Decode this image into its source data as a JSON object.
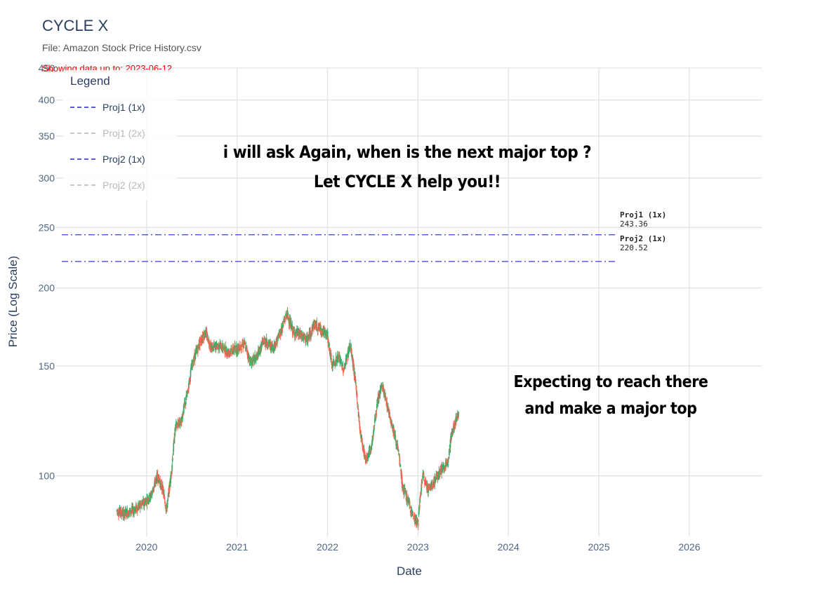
{
  "header": {
    "title": "CYCLE X",
    "file_label": "File: Amazon Stock Price History.csv",
    "showing": "Showing data up to: 2023-06-12"
  },
  "legend": {
    "title": "Legend",
    "items": [
      {
        "label": "Proj1 (1x)",
        "color": "#5b5bd6",
        "active": true
      },
      {
        "label": "Proj1 (2x)",
        "color": "#c8c8c8",
        "active": false
      },
      {
        "label": "Proj2 (1x)",
        "color": "#5b5bd6",
        "active": true
      },
      {
        "label": "Proj2 (2x)",
        "color": "#c8c8c8",
        "active": false
      }
    ]
  },
  "overlay_text": {
    "question_line1": "i will ask Again, when is the next major top ?",
    "question_line2": "Let CYCLE X help you!!",
    "expect_line1": "Expecting to reach there",
    "expect_line2": "and make a major top"
  },
  "annotations": [
    {
      "name": "Proj1 (1x)",
      "value": "243.36"
    },
    {
      "name": "Proj2 (1x)",
      "value": "220.52"
    }
  ],
  "chart_data": {
    "type": "candlestick",
    "title": "CYCLE X",
    "xlabel": "Date",
    "ylabel": "Price (Log Scale)",
    "yscale": "log",
    "ylim": [
      80,
      450
    ],
    "xlim": [
      2019.0,
      2026.8
    ],
    "x_ticks": [
      "2020",
      "2021",
      "2022",
      "2023",
      "2024",
      "2025",
      "2026"
    ],
    "y_ticks": [
      100,
      150,
      200,
      250,
      300,
      350,
      400,
      450
    ],
    "up_color": "#3dab6b",
    "down_color": "#f2674d",
    "projection_lines": [
      {
        "name": "Proj1 (1x)",
        "value": 243.36,
        "color": "#5b5bd6"
      },
      {
        "name": "Proj2 (1x)",
        "value": 220.52,
        "color": "#5b5bd6"
      }
    ],
    "price_path": [
      [
        2019.67,
        88
      ],
      [
        2019.75,
        87
      ],
      [
        2019.85,
        88
      ],
      [
        2019.95,
        90
      ],
      [
        2020.05,
        93
      ],
      [
        2020.12,
        100
      ],
      [
        2020.18,
        95
      ],
      [
        2020.22,
        88
      ],
      [
        2020.27,
        100
      ],
      [
        2020.32,
        120
      ],
      [
        2020.38,
        122
      ],
      [
        2020.45,
        135
      ],
      [
        2020.5,
        150
      ],
      [
        2020.55,
        158
      ],
      [
        2020.6,
        165
      ],
      [
        2020.65,
        170
      ],
      [
        2020.72,
        160
      ],
      [
        2020.8,
        162
      ],
      [
        2020.9,
        158
      ],
      [
        2021.0,
        160
      ],
      [
        2021.08,
        163
      ],
      [
        2021.15,
        152
      ],
      [
        2021.22,
        155
      ],
      [
        2021.3,
        165
      ],
      [
        2021.4,
        160
      ],
      [
        2021.48,
        170
      ],
      [
        2021.55,
        182
      ],
      [
        2021.62,
        170
      ],
      [
        2021.7,
        168
      ],
      [
        2021.78,
        165
      ],
      [
        2021.85,
        175
      ],
      [
        2021.92,
        172
      ],
      [
        2022.0,
        168
      ],
      [
        2022.05,
        150
      ],
      [
        2022.12,
        155
      ],
      [
        2022.18,
        148
      ],
      [
        2022.25,
        162
      ],
      [
        2022.3,
        145
      ],
      [
        2022.36,
        118
      ],
      [
        2022.42,
        106
      ],
      [
        2022.48,
        110
      ],
      [
        2022.55,
        130
      ],
      [
        2022.6,
        140
      ],
      [
        2022.67,
        128
      ],
      [
        2022.72,
        120
      ],
      [
        2022.78,
        110
      ],
      [
        2022.83,
        96
      ],
      [
        2022.88,
        92
      ],
      [
        2022.95,
        86
      ],
      [
        2023.0,
        84
      ],
      [
        2023.05,
        100
      ],
      [
        2023.12,
        95
      ],
      [
        2023.18,
        98
      ],
      [
        2023.25,
        102
      ],
      [
        2023.32,
        104
      ],
      [
        2023.38,
        118
      ],
      [
        2023.45,
        126
      ]
    ]
  }
}
